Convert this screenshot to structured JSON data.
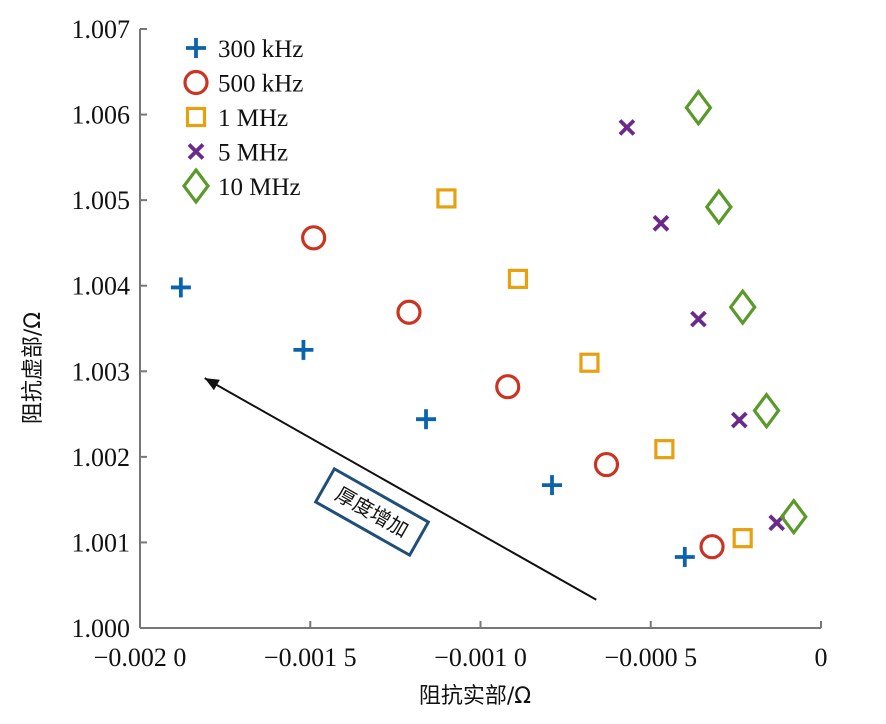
{
  "chart_data": {
    "type": "scatter",
    "title": "",
    "xlabel": "阻抗实部/Ω",
    "ylabel": "阻抗虚部/Ω",
    "xlim": [
      -0.002,
      0
    ],
    "ylim": [
      1.0,
      1.007
    ],
    "grid": false,
    "legend_position": "top-left",
    "x_ticks": [
      {
        "value": -0.002,
        "label": "−0.002 0"
      },
      {
        "value": -0.0015,
        "label": "−0.001 5"
      },
      {
        "value": -0.001,
        "label": "−0.001 0"
      },
      {
        "value": -0.0005,
        "label": "−0.000 5"
      },
      {
        "value": 0,
        "label": "0"
      }
    ],
    "y_ticks": [
      {
        "value": 1.0,
        "label": "1.000"
      },
      {
        "value": 1.001,
        "label": "1.001"
      },
      {
        "value": 1.002,
        "label": "1.002"
      },
      {
        "value": 1.003,
        "label": "1.003"
      },
      {
        "value": 1.004,
        "label": "1.004"
      },
      {
        "value": 1.005,
        "label": "1.005"
      },
      {
        "value": 1.006,
        "label": "1.006"
      },
      {
        "value": 1.007,
        "label": "1.007"
      }
    ],
    "series": [
      {
        "name": "300 kHz",
        "marker": "plus",
        "color": "#0b62ad",
        "x": [
          -0.00188,
          -0.00152,
          -0.00116,
          -0.00079,
          -0.0004
        ],
        "y": [
          1.00398,
          1.00325,
          1.00244,
          1.00167,
          1.00083
        ]
      },
      {
        "name": "500 kHz",
        "marker": "circle",
        "color": "#cc3322",
        "x": [
          -0.00149,
          -0.00121,
          -0.00092,
          -0.00063,
          -0.00032
        ],
        "y": [
          1.00456,
          1.00369,
          1.00282,
          1.00191,
          1.00095
        ]
      },
      {
        "name": "1 MHz",
        "marker": "square",
        "color": "#e6a010",
        "x": [
          -0.0011,
          -0.00089,
          -0.00068,
          -0.00046,
          -0.00023
        ],
        "y": [
          1.00502,
          1.00408,
          1.0031,
          1.00209,
          1.00105
        ]
      },
      {
        "name": "5 MHz",
        "marker": "x",
        "color": "#6a2a8c",
        "x": [
          -0.00057,
          -0.00047,
          -0.00036,
          -0.00024,
          -0.00013
        ],
        "y": [
          1.00585,
          1.00473,
          1.00361,
          1.00243,
          1.00123
        ]
      },
      {
        "name": "10 MHz",
        "marker": "diamond",
        "color": "#5a9a2a",
        "x": [
          -0.00036,
          -0.0003,
          -0.00023,
          -0.00016,
          -8e-05
        ],
        "y": [
          1.00608,
          1.00492,
          1.00375,
          1.00254,
          1.0013
        ]
      }
    ],
    "annotations": [
      {
        "type": "arrow",
        "text": "厚度增加",
        "from": [
          -0.00066,
          1.00033
        ],
        "to": [
          -0.00181,
          1.00292
        ],
        "box_color": "#1f4e7a"
      }
    ]
  }
}
